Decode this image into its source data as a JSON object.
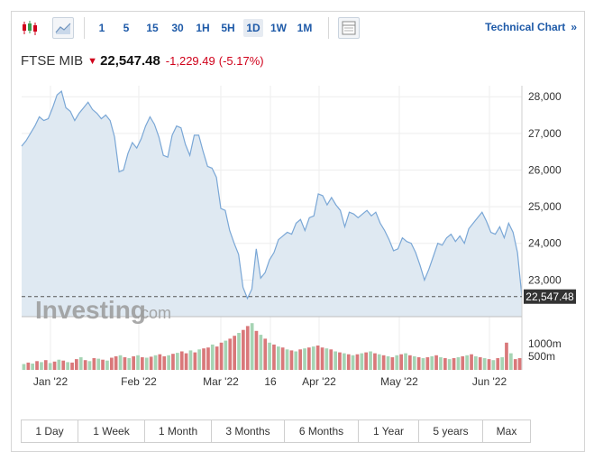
{
  "toolbar": {
    "intervals": [
      "1",
      "5",
      "15",
      "30",
      "1H",
      "5H",
      "1D",
      "1W",
      "1M"
    ],
    "active_interval": "1D",
    "technical_chart_label": "Technical Chart",
    "technical_chart_icon": "double-chevron-right"
  },
  "quote": {
    "name": "FTSE MIB",
    "price": "22,547.48",
    "change": "-1,229.49",
    "change_percent": "(-5.17%)",
    "direction_icon": "down-arrow",
    "down_color": "#d0021b"
  },
  "watermark": {
    "brand": "Investing",
    "suffix": ".com"
  },
  "ranges": [
    "1 Day",
    "1 Week",
    "1 Month",
    "3 Months",
    "6 Months",
    "1 Year",
    "5 years",
    "Max"
  ],
  "chart_data": {
    "type": "area",
    "y_ticks": [
      "28,000",
      "27,000",
      "26,000",
      "25,000",
      "24,000",
      "23,000"
    ],
    "y_range": [
      22000,
      28300
    ],
    "last_price_label": "22,547.48",
    "x_tick_labels": [
      "Jan '22",
      "Feb '22",
      "Mar '22",
      "16",
      "Apr '22",
      "May '22",
      "Jun '22"
    ],
    "line_color": "#7aa7d6",
    "fill_color": "#dfe9f2",
    "series": [
      {
        "values": [
          26650,
          26800,
          27000,
          27200,
          27450,
          27350,
          27400,
          27700,
          28050,
          28150,
          27700,
          27600,
          27350,
          27550,
          27700,
          27850,
          27650,
          27550,
          27400,
          27500,
          27350,
          26900,
          25950,
          26000,
          26450,
          26750,
          26600,
          26850,
          27200,
          27450,
          27250,
          26900,
          26400,
          26350,
          26950,
          27200,
          27150,
          26700,
          26400,
          26950,
          26950,
          26500,
          26100,
          26050,
          25800,
          24950,
          24900,
          24350,
          24000,
          23700,
          22800,
          22500,
          22750,
          23850,
          23050,
          23200,
          23550,
          23750,
          24100,
          24200,
          24300,
          24250,
          24550,
          24650,
          24350,
          24700,
          24750,
          25350,
          25300,
          25050,
          25250,
          25050,
          24900,
          24450,
          24850,
          24800,
          24700,
          24800,
          24900,
          24750,
          24850,
          24550,
          24350,
          24100,
          23800,
          23850,
          24150,
          24050,
          24000,
          23750,
          23400,
          23000,
          23300,
          23650,
          24000,
          23950,
          24150,
          24250,
          24050,
          24200,
          24000,
          24400,
          24550,
          24700,
          24850,
          24600,
          24300,
          24250,
          24450,
          24150,
          24550,
          24300,
          23750,
          22547.48
        ]
      }
    ],
    "volume": {
      "labels": [
        "1000m",
        "500m"
      ],
      "up_color": "#a6d4b4",
      "down_color": "#d9787a",
      "values": [
        120,
        150,
        130,
        180,
        160,
        200,
        140,
        170,
        210,
        190,
        160,
        150,
        220,
        260,
        200,
        180,
        240,
        230,
        210,
        190,
        250,
        280,
        300,
        260,
        240,
        280,
        300,
        260,
        250,
        270,
        300,
        320,
        280,
        300,
        330,
        350,
        380,
        340,
        400,
        360,
        420,
        440,
        460,
        520,
        480,
        560,
        600,
        640,
        700,
        760,
        820,
        900,
        960,
        800,
        720,
        640,
        560,
        520,
        480,
        460,
        420,
        400,
        380,
        420,
        440,
        460,
        480,
        500,
        460,
        440,
        420,
        380,
        360,
        340,
        320,
        300,
        320,
        340,
        360,
        380,
        340,
        320,
        300,
        280,
        260,
        300,
        320,
        340,
        300,
        280,
        260,
        240,
        260,
        280,
        300,
        260,
        240,
        220,
        240,
        260,
        280,
        300,
        320,
        280,
        260,
        240,
        220,
        200,
        240,
        260,
        560,
        340,
        220,
        240
      ],
      "directions": [
        "u",
        "d",
        "u",
        "d",
        "u",
        "d",
        "u",
        "d",
        "u",
        "d",
        "u",
        "d",
        "d",
        "u",
        "d",
        "u",
        "d",
        "u",
        "d",
        "u",
        "d",
        "d",
        "u",
        "d",
        "u",
        "d",
        "u",
        "d",
        "u",
        "d",
        "u",
        "d",
        "d",
        "u",
        "d",
        "u",
        "d",
        "d",
        "u",
        "d",
        "u",
        "d",
        "d",
        "u",
        "d",
        "d",
        "u",
        "d",
        "d",
        "u",
        "d",
        "d",
        "u",
        "d",
        "u",
        "d",
        "u",
        "d",
        "u",
        "d",
        "u",
        "d",
        "u",
        "d",
        "u",
        "d",
        "u",
        "d",
        "d",
        "u",
        "d",
        "u",
        "d",
        "u",
        "d",
        "u",
        "d",
        "u",
        "d",
        "u",
        "d",
        "u",
        "d",
        "u",
        "d",
        "u",
        "d",
        "u",
        "d",
        "u",
        "d",
        "u",
        "d",
        "u",
        "d",
        "u",
        "d",
        "u",
        "d",
        "u",
        "d",
        "u",
        "d",
        "u",
        "d",
        "u",
        "d",
        "u",
        "d",
        "u",
        "d",
        "u",
        "d",
        "d"
      ]
    }
  }
}
